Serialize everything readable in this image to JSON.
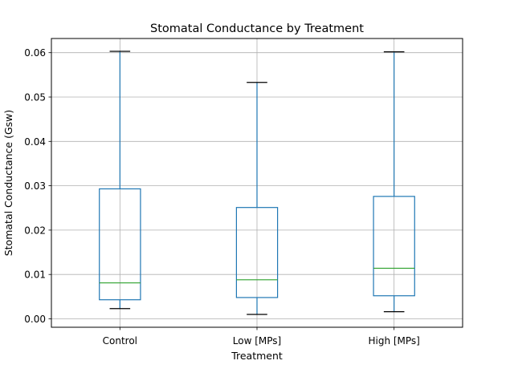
{
  "chart_data": {
    "type": "box",
    "title": "Stomatal Conductance by Treatment",
    "xlabel": "Treatment",
    "ylabel": "Stomatal Conductance (Gsw)",
    "ylim": [
      -0.0019,
      0.0632
    ],
    "yticks": [
      0.0,
      0.01,
      0.02,
      0.03,
      0.04,
      0.05,
      0.06
    ],
    "ytick_labels": [
      "0.00",
      "0.01",
      "0.02",
      "0.03",
      "0.04",
      "0.05",
      "0.06"
    ],
    "grid": true,
    "categories": [
      "Control",
      "Low [MPs]",
      "High [MPs]"
    ],
    "boxes": [
      {
        "whisker_low": 0.0023,
        "q1": 0.0043,
        "median": 0.0081,
        "q3": 0.0293,
        "whisker_high": 0.0603
      },
      {
        "whisker_low": 0.001,
        "q1": 0.0048,
        "median": 0.0088,
        "q3": 0.0251,
        "whisker_high": 0.0533
      },
      {
        "whisker_low": 0.0016,
        "q1": 0.0052,
        "median": 0.0114,
        "q3": 0.0276,
        "whisker_high": 0.0602
      }
    ],
    "colors": {
      "box": "#1f77b4",
      "median": "#2ca02c",
      "cap": "#000000",
      "grid": "#b0b0b0"
    }
  }
}
